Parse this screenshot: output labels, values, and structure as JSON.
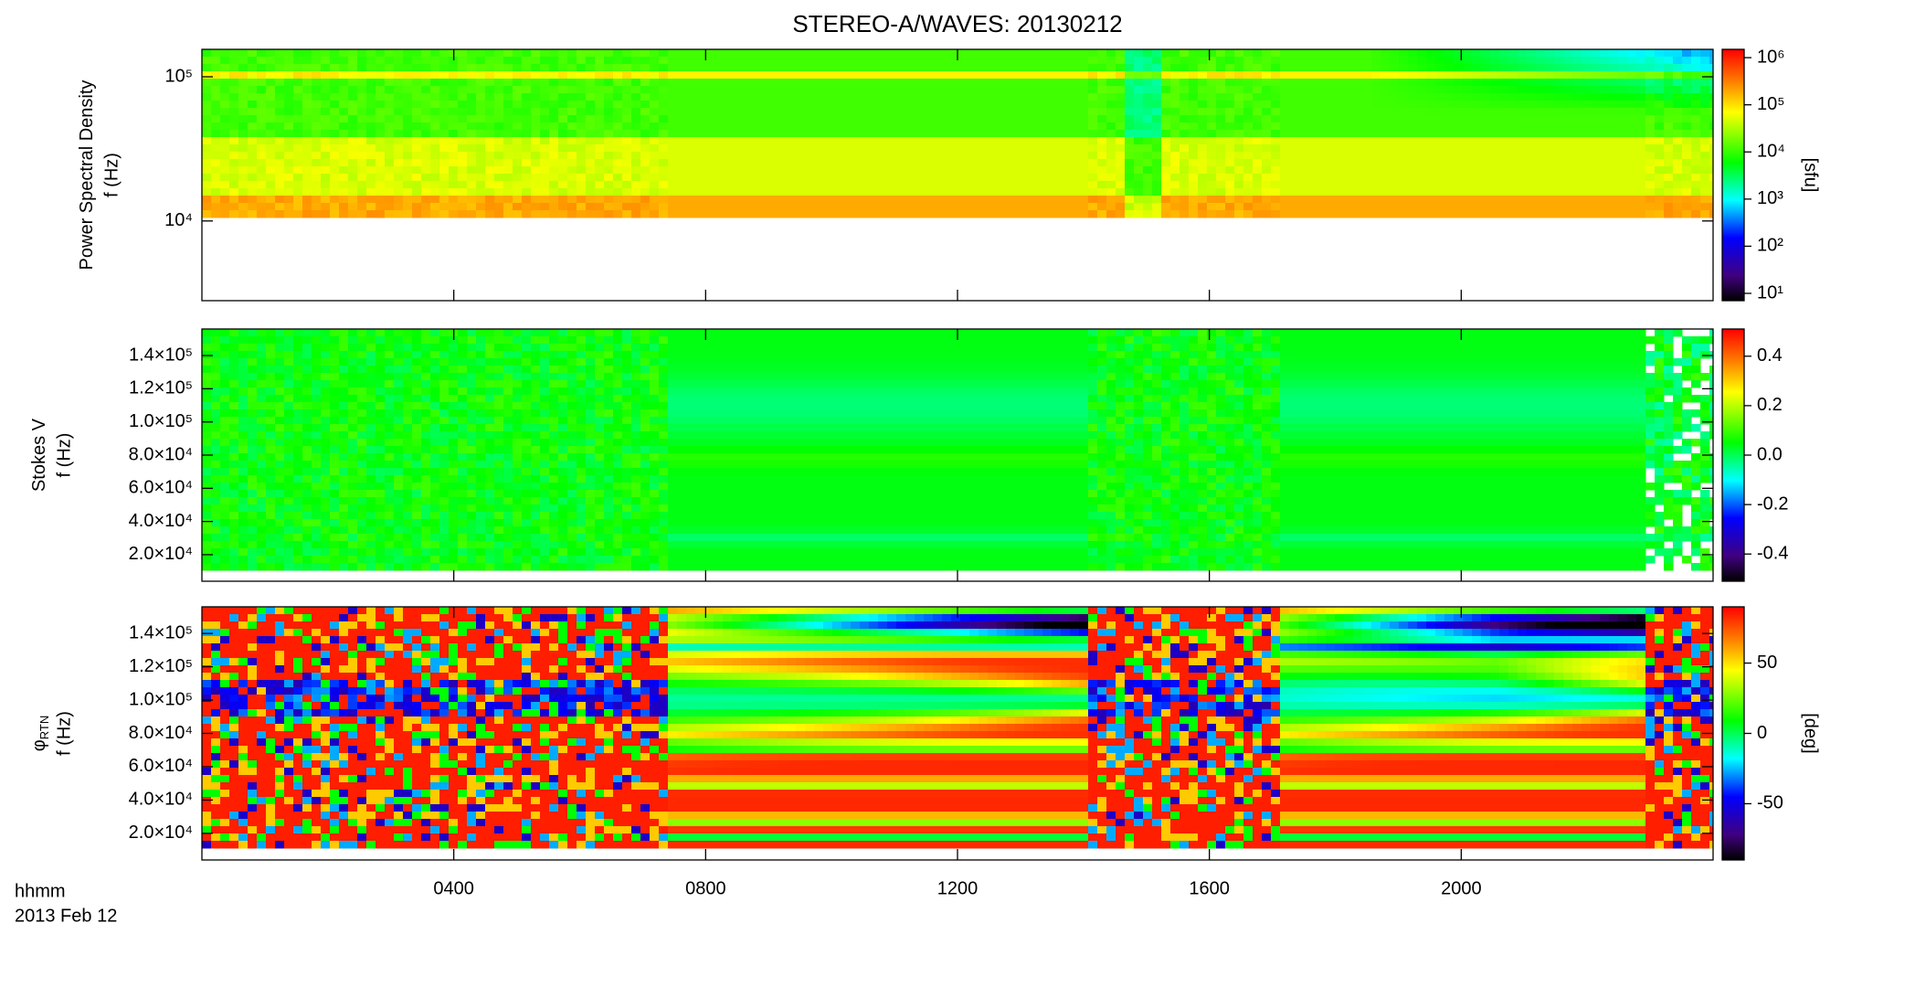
{
  "chart_data": [
    {
      "type": "spectrogram",
      "title": "STEREO-A/WAVES: 20130212",
      "ylabel": "Power Spectral Density",
      "yunit": "f (Hz)",
      "ylog": true,
      "xlim": [
        0,
        24
      ],
      "ylim": [
        2800,
        155000
      ],
      "yticks": [
        {
          "value": 10000,
          "label": "10⁴"
        },
        {
          "value": 100000,
          "label": "10⁵"
        }
      ],
      "clog": true,
      "clim": [
        7,
        1500000
      ],
      "clabel": "[sfu]",
      "cticks": [
        {
          "value": 10,
          "label": "10¹"
        },
        {
          "value": 100,
          "label": "10²"
        },
        {
          "value": 1000,
          "label": "10³"
        },
        {
          "value": 10000,
          "label": "10⁴"
        },
        {
          "value": 100000,
          "label": "10⁵"
        },
        {
          "value": 1000000,
          "label": "10⁶"
        }
      ]
    },
    {
      "type": "spectrogram",
      "ylabel": "Stokes V",
      "yunit": "f (Hz)",
      "ylog": false,
      "xlim": [
        0,
        24
      ],
      "ylim": [
        4000,
        156000
      ],
      "yticks": [
        {
          "value": 20000,
          "label": "2.0×10⁴"
        },
        {
          "value": 40000,
          "label": "4.0×10⁴"
        },
        {
          "value": 60000,
          "label": "6.0×10⁴"
        },
        {
          "value": 80000,
          "label": "8.0×10⁴"
        },
        {
          "value": 100000,
          "label": "1.0×10⁵"
        },
        {
          "value": 120000,
          "label": "1.2×10⁵"
        },
        {
          "value": 140000,
          "label": "1.4×10⁵"
        }
      ],
      "clog": false,
      "clim": [
        -0.51,
        0.51
      ],
      "cticks": [
        -0.4,
        -0.2,
        {
          "value": 0,
          "label": "0.0"
        },
        0.2,
        0.4
      ]
    },
    {
      "type": "spectrogram",
      "ylabel": "φ",
      "ylabel_sub": "RTN",
      "yunit": "f (Hz)",
      "ylog": false,
      "xlim": [
        0,
        24
      ],
      "ylim": [
        4000,
        156000
      ],
      "yticks": [
        {
          "value": 20000,
          "label": "2.0×10⁴"
        },
        {
          "value": 40000,
          "label": "4.0×10⁴"
        },
        {
          "value": 60000,
          "label": "6.0×10⁴"
        },
        {
          "value": 80000,
          "label": "8.0×10⁴"
        },
        {
          "value": 100000,
          "label": "1.0×10⁵"
        },
        {
          "value": 120000,
          "label": "1.2×10⁵"
        },
        {
          "value": 140000,
          "label": "1.4×10⁵"
        }
      ],
      "clog": false,
      "clim": [
        -90,
        90
      ],
      "clabel": "[deg]",
      "cticks": [
        -50,
        0,
        50
      ],
      "xlabel": "hhmm",
      "date": "2013 Feb 12",
      "xticks": [
        {
          "value": 4,
          "label": "0400"
        },
        {
          "value": 8,
          "label": "0800"
        },
        {
          "value": 12,
          "label": "1200"
        },
        {
          "value": 16,
          "label": "1600"
        },
        {
          "value": 20,
          "label": "2000"
        }
      ]
    }
  ]
}
